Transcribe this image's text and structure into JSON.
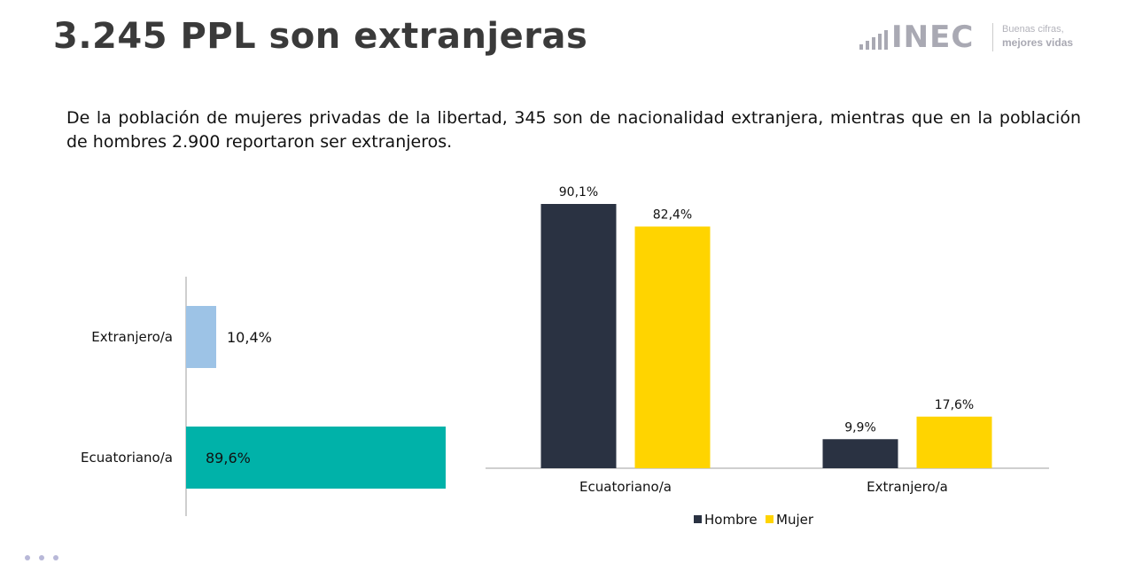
{
  "title": "3.245 PPL son extranjeras",
  "logo": {
    "word": "INEC",
    "tagline_line1": "Buenas cifras,",
    "tagline_line2": "mejores vidas"
  },
  "paragraph": "De la población de mujeres privadas de la libertad, 345 son de nacionalidad extranjera, mientras que en la población de hombres 2.900 reportaron ser extranjeros.",
  "chart_data": [
    {
      "type": "bar",
      "orientation": "horizontal",
      "categories": [
        "Extranjero/a",
        "Ecuatoriano/a"
      ],
      "values": [
        10.4,
        89.6
      ],
      "value_labels": [
        "10,4%",
        "89,6%"
      ],
      "colors": [
        "#9dc3e6",
        "#00b2a9"
      ],
      "xlim": [
        0,
        100
      ],
      "grid": false
    },
    {
      "type": "bar",
      "orientation": "vertical",
      "categories": [
        "Ecuatoriano/a",
        "Extranjero/a"
      ],
      "series": [
        {
          "name": "Hombre",
          "color": "#2a3242",
          "values": [
            90.1,
            9.9
          ],
          "labels": [
            "90,1%",
            "9,9%"
          ]
        },
        {
          "name": "Mujer",
          "color": "#ffd400",
          "values": [
            82.4,
            17.6
          ],
          "labels": [
            "82,4%",
            "17,6%"
          ]
        }
      ],
      "ylim": [
        0,
        100
      ],
      "legend": "bottom",
      "grid": false
    }
  ]
}
